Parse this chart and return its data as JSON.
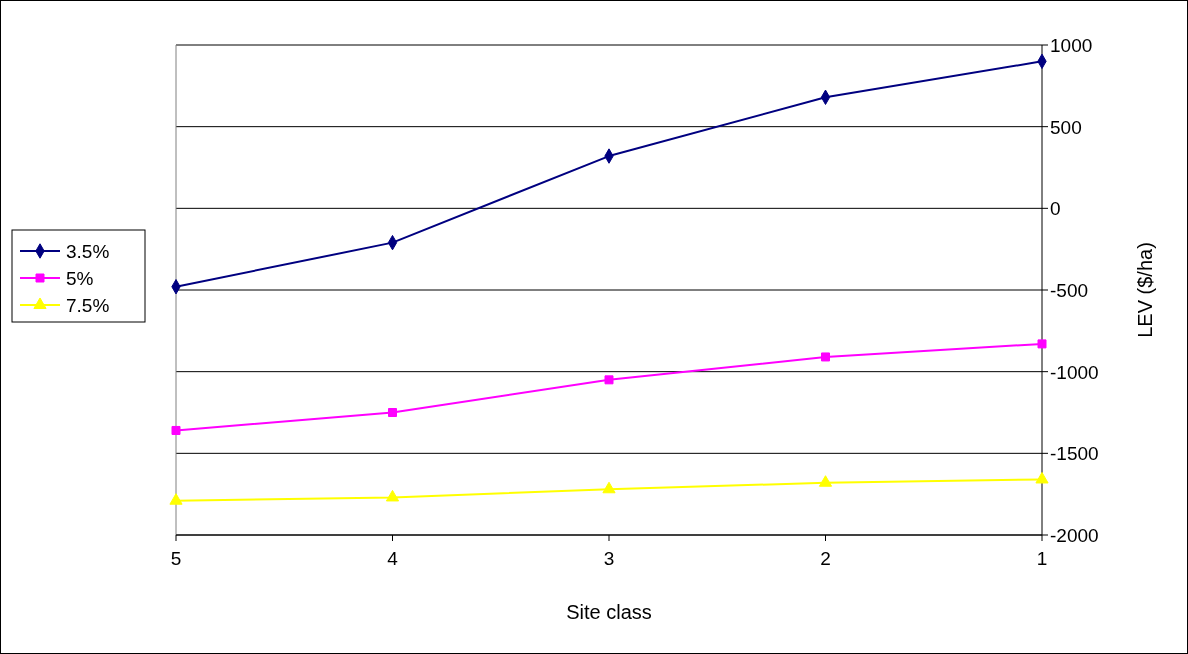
{
  "chart_data": {
    "type": "line",
    "xlabel": "Site class",
    "ylabel": "LEV ($/ha)",
    "categories": [
      "5",
      "4",
      "3",
      "2",
      "1"
    ],
    "series": [
      {
        "name": "3.5%",
        "color": "#000080",
        "marker": "diamond",
        "values": [
          -480,
          -210,
          320,
          680,
          900
        ]
      },
      {
        "name": "5%",
        "color": "#ff00ff",
        "marker": "square",
        "values": [
          -1360,
          -1250,
          -1050,
          -910,
          -830
        ]
      },
      {
        "name": "7.5%",
        "color": "#ffff00",
        "marker": "triangle",
        "values": [
          -1790,
          -1770,
          -1720,
          -1680,
          -1660
        ]
      }
    ],
    "ylim": [
      -2000,
      1000
    ],
    "yticks": [
      -2000,
      -1500,
      -1000,
      -500,
      0,
      500,
      1000
    ],
    "grid": "y",
    "legend": "left"
  }
}
